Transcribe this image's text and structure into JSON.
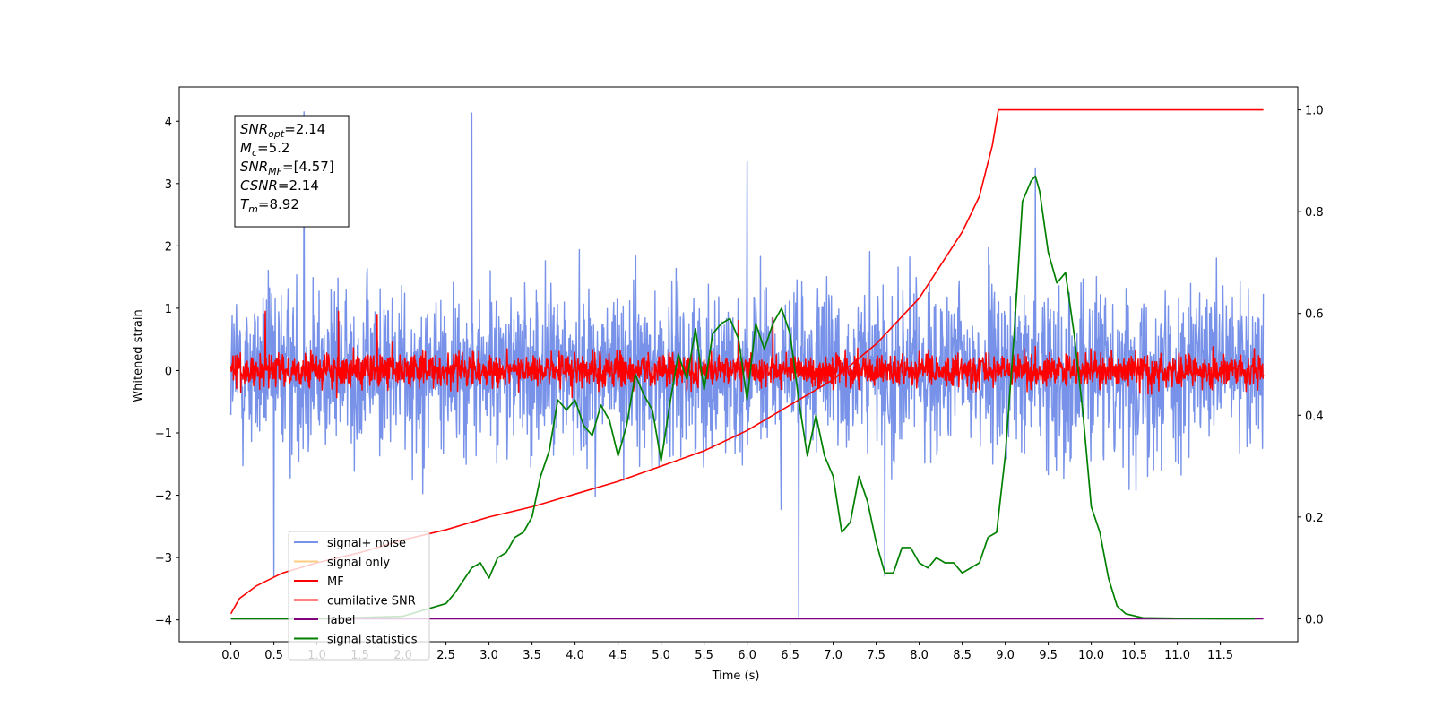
{
  "chart_data": {
    "type": "line",
    "xlabel": "Time (s)",
    "ylabel": "Whitened strain",
    "xlim": [
      -0.6,
      12.4
    ],
    "ylim": [
      -4.35,
      4.55
    ],
    "y2lim": [
      -0.045,
      1.045
    ],
    "x_ticks": [
      0.0,
      0.5,
      1.0,
      1.5,
      2.0,
      2.5,
      3.0,
      3.5,
      4.0,
      4.5,
      5.0,
      5.5,
      6.0,
      6.5,
      7.0,
      7.5,
      8.0,
      8.5,
      9.0,
      9.5,
      10.0,
      10.5,
      11.0,
      11.5
    ],
    "x_tick_labels": [
      "0.0",
      "0.5",
      "1.0",
      "1.5",
      "2.0",
      "2.5",
      "3.0",
      "3.5",
      "4.0",
      "4.5",
      "5.0",
      "5.5",
      "6.0",
      "6.5",
      "7.0",
      "7.5",
      "8.0",
      "8.5",
      "9.0",
      "9.5",
      "10.0",
      "10.5",
      "11.0",
      "11.5"
    ],
    "y_ticks": [
      -4,
      -3,
      -2,
      -1,
      0,
      1,
      2,
      3,
      4
    ],
    "y_tick_labels": [
      "−4",
      "−3",
      "−2",
      "−1",
      "0",
      "1",
      "2",
      "3",
      "4"
    ],
    "y2_ticks": [
      0.0,
      0.2,
      0.4,
      0.6,
      0.8,
      1.0
    ],
    "y2_tick_labels": [
      "0.0",
      "0.2",
      "0.4",
      "0.6",
      "0.8",
      "1.0"
    ],
    "grid": false,
    "legend_placement": "lower-left",
    "legend": [
      {
        "label": "signal+ noise",
        "color": "#7792e8"
      },
      {
        "label": "signal only",
        "color": "#ffcc80"
      },
      {
        "label": "MF",
        "color": "#ff0000"
      },
      {
        "label": "cumilative SNR",
        "color": "#ff0000"
      },
      {
        "label": "label",
        "color": "#800080"
      },
      {
        "label": "signal statistics",
        "color": "#008000"
      }
    ],
    "series": [
      {
        "name": "signal+ noise",
        "axis": "left",
        "color": "#7792e8",
        "x_range": [
          0,
          12
        ],
        "typical_range": [
          -1.7,
          1.7
        ],
        "notable_peaks": [
          [
            0.85,
            4.15
          ],
          [
            2.8,
            4.13
          ],
          [
            6.0,
            3.35
          ],
          [
            9.35,
            3.25
          ],
          [
            6.6,
            -3.95
          ],
          [
            0.5,
            -3.3
          ],
          [
            7.6,
            -3.3
          ]
        ]
      },
      {
        "name": "MF",
        "axis": "left",
        "color": "#ff0000",
        "x_range": [
          0,
          12
        ],
        "typical_range": [
          -0.35,
          0.35
        ],
        "notable_peaks": [
          [
            1.25,
            0.95
          ],
          [
            0.4,
            0.95
          ],
          [
            1.7,
            0.9
          ],
          [
            6.3,
            0.85
          ],
          [
            5.9,
            0.8
          ]
        ]
      },
      {
        "name": "cumilative SNR",
        "axis": "right",
        "color": "#ff0000",
        "x": [
          0.0,
          0.1,
          0.3,
          0.6,
          1.0,
          1.5,
          2.0,
          2.5,
          3.0,
          3.5,
          4.0,
          4.5,
          5.0,
          5.5,
          6.0,
          6.5,
          7.0,
          7.5,
          8.0,
          8.5,
          8.7,
          8.85,
          8.92,
          12.0
        ],
        "y": [
          0.01,
          0.04,
          0.065,
          0.09,
          0.11,
          0.13,
          0.155,
          0.175,
          0.2,
          0.22,
          0.245,
          0.27,
          0.3,
          0.33,
          0.37,
          0.42,
          0.47,
          0.54,
          0.63,
          0.76,
          0.83,
          0.93,
          1.0,
          1.0
        ]
      },
      {
        "name": "label",
        "axis": "right",
        "color": "#800080",
        "x": [
          0.0,
          12.0
        ],
        "y": [
          0.0,
          0.0
        ]
      },
      {
        "name": "signal statistics",
        "axis": "right",
        "color": "#008000",
        "x": [
          0.0,
          1.0,
          2.0,
          2.3,
          2.5,
          2.6,
          2.8,
          2.9,
          3.0,
          3.1,
          3.2,
          3.3,
          3.4,
          3.5,
          3.6,
          3.7,
          3.8,
          3.9,
          4.0,
          4.1,
          4.2,
          4.3,
          4.4,
          4.5,
          4.6,
          4.7,
          4.8,
          4.9,
          5.0,
          5.1,
          5.2,
          5.3,
          5.4,
          5.5,
          5.6,
          5.7,
          5.8,
          5.9,
          6.0,
          6.1,
          6.2,
          6.3,
          6.4,
          6.5,
          6.6,
          6.7,
          6.8,
          6.9,
          7.0,
          7.1,
          7.2,
          7.3,
          7.4,
          7.5,
          7.6,
          7.7,
          7.8,
          7.9,
          8.0,
          8.1,
          8.2,
          8.3,
          8.4,
          8.5,
          8.6,
          8.7,
          8.8,
          8.9,
          9.0,
          9.1,
          9.2,
          9.3,
          9.35,
          9.4,
          9.5,
          9.6,
          9.7,
          9.8,
          9.9,
          10.0,
          10.1,
          10.2,
          10.3,
          10.4,
          10.6,
          11.0,
          11.5,
          11.9
        ],
        "y": [
          0.0,
          0.0,
          0.005,
          0.02,
          0.03,
          0.05,
          0.1,
          0.11,
          0.08,
          0.12,
          0.13,
          0.16,
          0.17,
          0.2,
          0.28,
          0.33,
          0.43,
          0.41,
          0.43,
          0.38,
          0.36,
          0.42,
          0.39,
          0.32,
          0.38,
          0.48,
          0.44,
          0.41,
          0.31,
          0.42,
          0.52,
          0.47,
          0.57,
          0.45,
          0.56,
          0.58,
          0.59,
          0.55,
          0.43,
          0.58,
          0.53,
          0.58,
          0.61,
          0.56,
          0.43,
          0.32,
          0.4,
          0.32,
          0.28,
          0.17,
          0.19,
          0.28,
          0.23,
          0.15,
          0.09,
          0.09,
          0.14,
          0.14,
          0.11,
          0.1,
          0.12,
          0.11,
          0.11,
          0.09,
          0.1,
          0.11,
          0.16,
          0.17,
          0.32,
          0.55,
          0.82,
          0.86,
          0.87,
          0.84,
          0.72,
          0.66,
          0.68,
          0.56,
          0.41,
          0.22,
          0.17,
          0.08,
          0.025,
          0.01,
          0.002,
          0.001,
          0.0,
          0.0
        ]
      }
    ]
  },
  "info_box": {
    "lines": [
      {
        "base": "SNR",
        "sub": "opt",
        "value": "=2.14"
      },
      {
        "base": "M",
        "sub": "c",
        "value": "=5.2"
      },
      {
        "base": "SNR",
        "sub": "MF",
        "value": "=[4.57]"
      },
      {
        "base": "CSNR",
        "sub": "",
        "value": "=2.14"
      },
      {
        "base": "T",
        "sub": "m",
        "value": "=8.92"
      }
    ]
  }
}
